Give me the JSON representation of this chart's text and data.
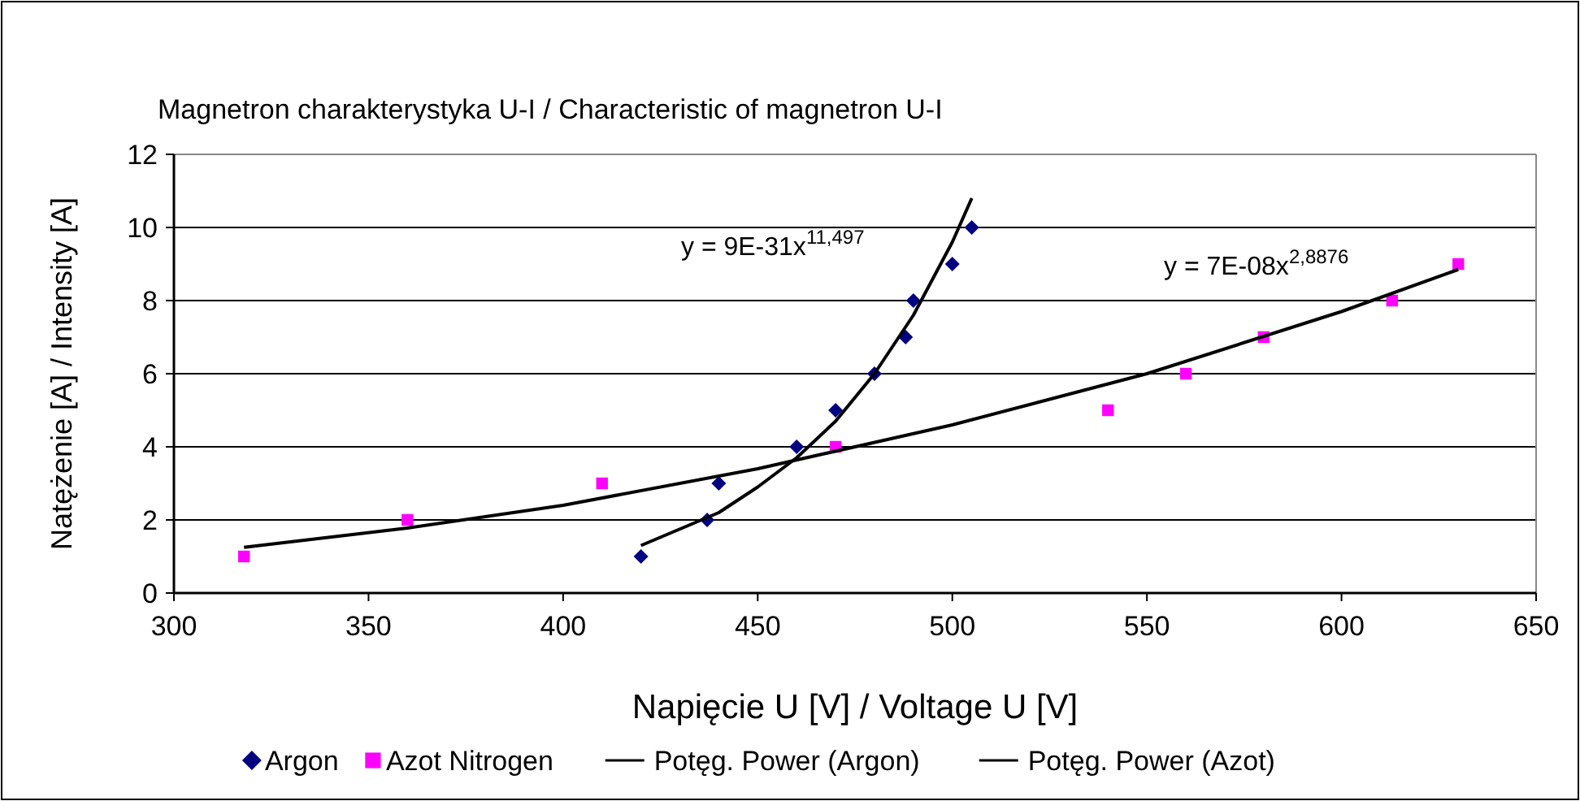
{
  "chart_data": {
    "type": "scatter",
    "title": "Magnetron charakterystyka U-I / Characteristic of magnetron U-I",
    "xlabel": "Napięcie U [V] / Voltage U [V]",
    "ylabel": "Natężenie [A] / Intensity [A]",
    "xlim": [
      300,
      650
    ],
    "xticks": [
      300,
      350,
      400,
      450,
      500,
      550,
      600,
      650
    ],
    "ylim": [
      0,
      12
    ],
    "yticks": [
      0,
      2,
      4,
      6,
      8,
      10,
      12
    ],
    "grid": "y",
    "legend": "bottom",
    "series": [
      {
        "name": "Argon",
        "marker": "diamond",
        "color": "#000080",
        "x": [
          420,
          437,
          440,
          460,
          470,
          480,
          488,
          490,
          500,
          505
        ],
        "values": [
          1,
          2,
          3,
          4,
          5,
          6,
          7,
          8,
          9,
          10
        ]
      },
      {
        "name": "Azot Nitrogen",
        "marker": "square",
        "color": "#ff00ff",
        "x": [
          318,
          360,
          410,
          470,
          540,
          560,
          580,
          613,
          630
        ],
        "values": [
          1,
          2,
          3,
          4,
          5,
          6,
          7,
          8,
          9
        ]
      },
      {
        "name": "Potęg. Power (Argon)",
        "type": "line",
        "marker": "none",
        "line_style": "solid",
        "color": "#000000",
        "x": [
          420,
          440,
          450,
          460,
          470,
          480,
          490,
          500,
          505
        ],
        "values": [
          1.3,
          2.2,
          2.9,
          3.7,
          4.7,
          6.0,
          7.6,
          9.6,
          10.8
        ]
      },
      {
        "name": "Potęg. Power (Azot)",
        "type": "line",
        "marker": "none",
        "line_style": "solid",
        "color": "#000000",
        "x": [
          318,
          360,
          400,
          450,
          500,
          550,
          600,
          630
        ],
        "values": [
          1.25,
          1.78,
          2.4,
          3.4,
          4.6,
          6.0,
          7.7,
          8.85
        ]
      }
    ],
    "annotations": [
      "y = 9E-31x$^{11,497}$",
      "y = 7E-08x$^{2,8876}$"
    ]
  }
}
